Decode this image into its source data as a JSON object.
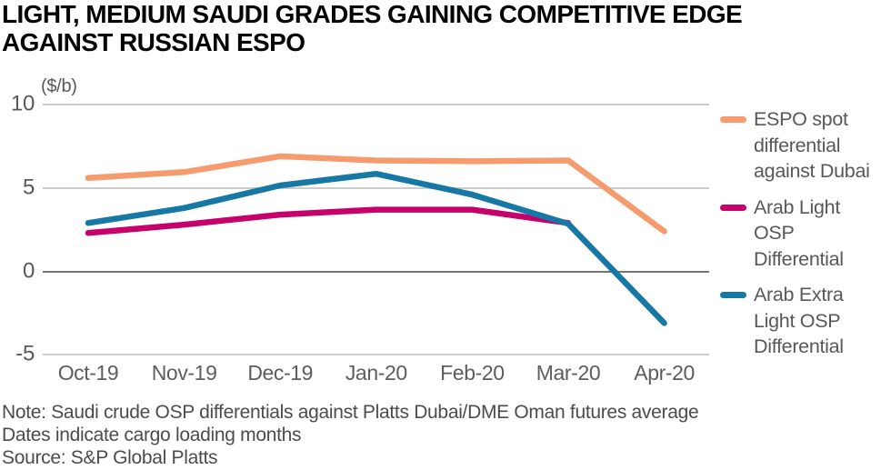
{
  "title": {
    "lines": [
      "LIGHT, MEDIUM SAUDI GRADES GAINING COMPETITIVE EDGE",
      "AGAINST RUSSIAN ESPO"
    ]
  },
  "notes": [
    "Note: Saudi crude OSP differentials against Platts Dubai/DME Oman futures average",
    "Dates indicate cargo loading months",
    "Source: S&P Global Platts"
  ],
  "colors": {
    "espo_orange": "#f69b6d",
    "arab_light_magenta": "#c7016c",
    "arab_extra_light_blue": "#1878a5",
    "gridline": "#cbcbcb",
    "zero_line": "#767676",
    "axis_text": "#58585b",
    "note_text": "#4c4c4e",
    "title_text": "#050505"
  },
  "chart_data": {
    "type": "line",
    "title": "LIGHT, MEDIUM SAUDI GRADES GAINING COMPETITIVE EDGE AGAINST RUSSIAN ESPO",
    "unit_label": "($/b)",
    "xlabel": "",
    "ylabel": "($/b)",
    "categories": [
      "Oct-19",
      "Nov-19",
      "Dec-19",
      "Jan-20",
      "Feb-20",
      "Mar-20",
      "Apr-20"
    ],
    "yticks": [
      10,
      5,
      0,
      -5
    ],
    "ylim": [
      -5,
      10
    ],
    "grid": true,
    "legend_position": "right",
    "series": [
      {
        "name": "ESPO spot differential against Dubai",
        "legend_lines": [
          "ESPO spot",
          "differential",
          "against Dubai"
        ],
        "color": "#f69b6d",
        "values": [
          5.6,
          5.95,
          6.9,
          6.65,
          6.6,
          6.65,
          2.4
        ]
      },
      {
        "name": "Arab Light OSP Differential",
        "legend_lines": [
          "Arab Light",
          "OSP",
          "Differential"
        ],
        "color": "#c7016c",
        "values": [
          2.3,
          2.8,
          3.4,
          3.7,
          3.7,
          2.9,
          null
        ]
      },
      {
        "name": "Arab Extra Light OSP Differential",
        "legend_lines": [
          "Arab Extra",
          "Light OSP",
          "Differential"
        ],
        "color": "#1878a5",
        "values": [
          2.9,
          3.8,
          5.15,
          5.85,
          4.6,
          2.85,
          -3.1
        ]
      }
    ]
  }
}
